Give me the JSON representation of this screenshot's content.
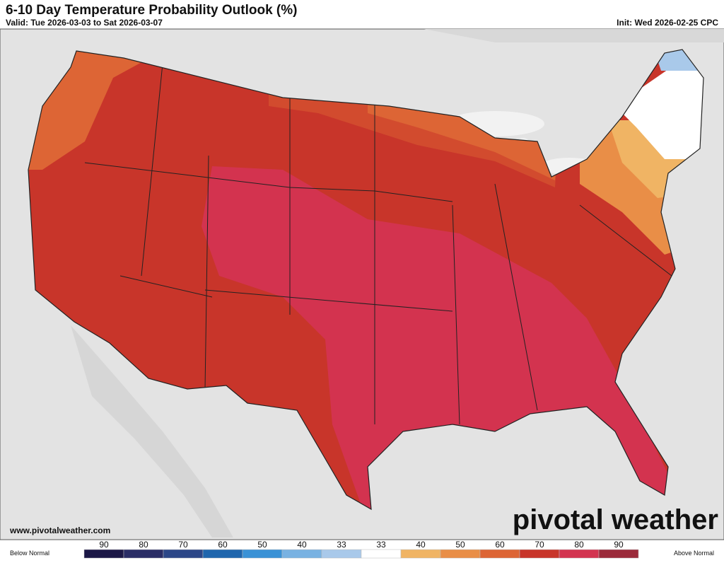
{
  "header": {
    "title": "6-10 Day Temperature Probability Outlook (%)",
    "valid": "Valid: Tue 2026-03-03 to Sat 2026-03-07",
    "init": "Init: Wed 2026-02-25 CPC"
  },
  "footer": {
    "url": "www.pivotalweather.com",
    "brand": "pivotal weather"
  },
  "legend": {
    "below_label": "Below Normal",
    "above_label": "Above Normal",
    "labels": [
      90,
      80,
      70,
      60,
      50,
      40,
      33,
      33,
      40,
      50,
      60,
      70,
      80,
      90
    ],
    "colors": [
      "#1b1746",
      "#2a2d66",
      "#2c4788",
      "#1f66ad",
      "#3a92d6",
      "#79b2e2",
      "#a9c9ea",
      "#ffffff",
      "#f0b464",
      "#e98e47",
      "#dd6535",
      "#c8352a",
      "#d33450",
      "#9b2a3a"
    ]
  }
}
